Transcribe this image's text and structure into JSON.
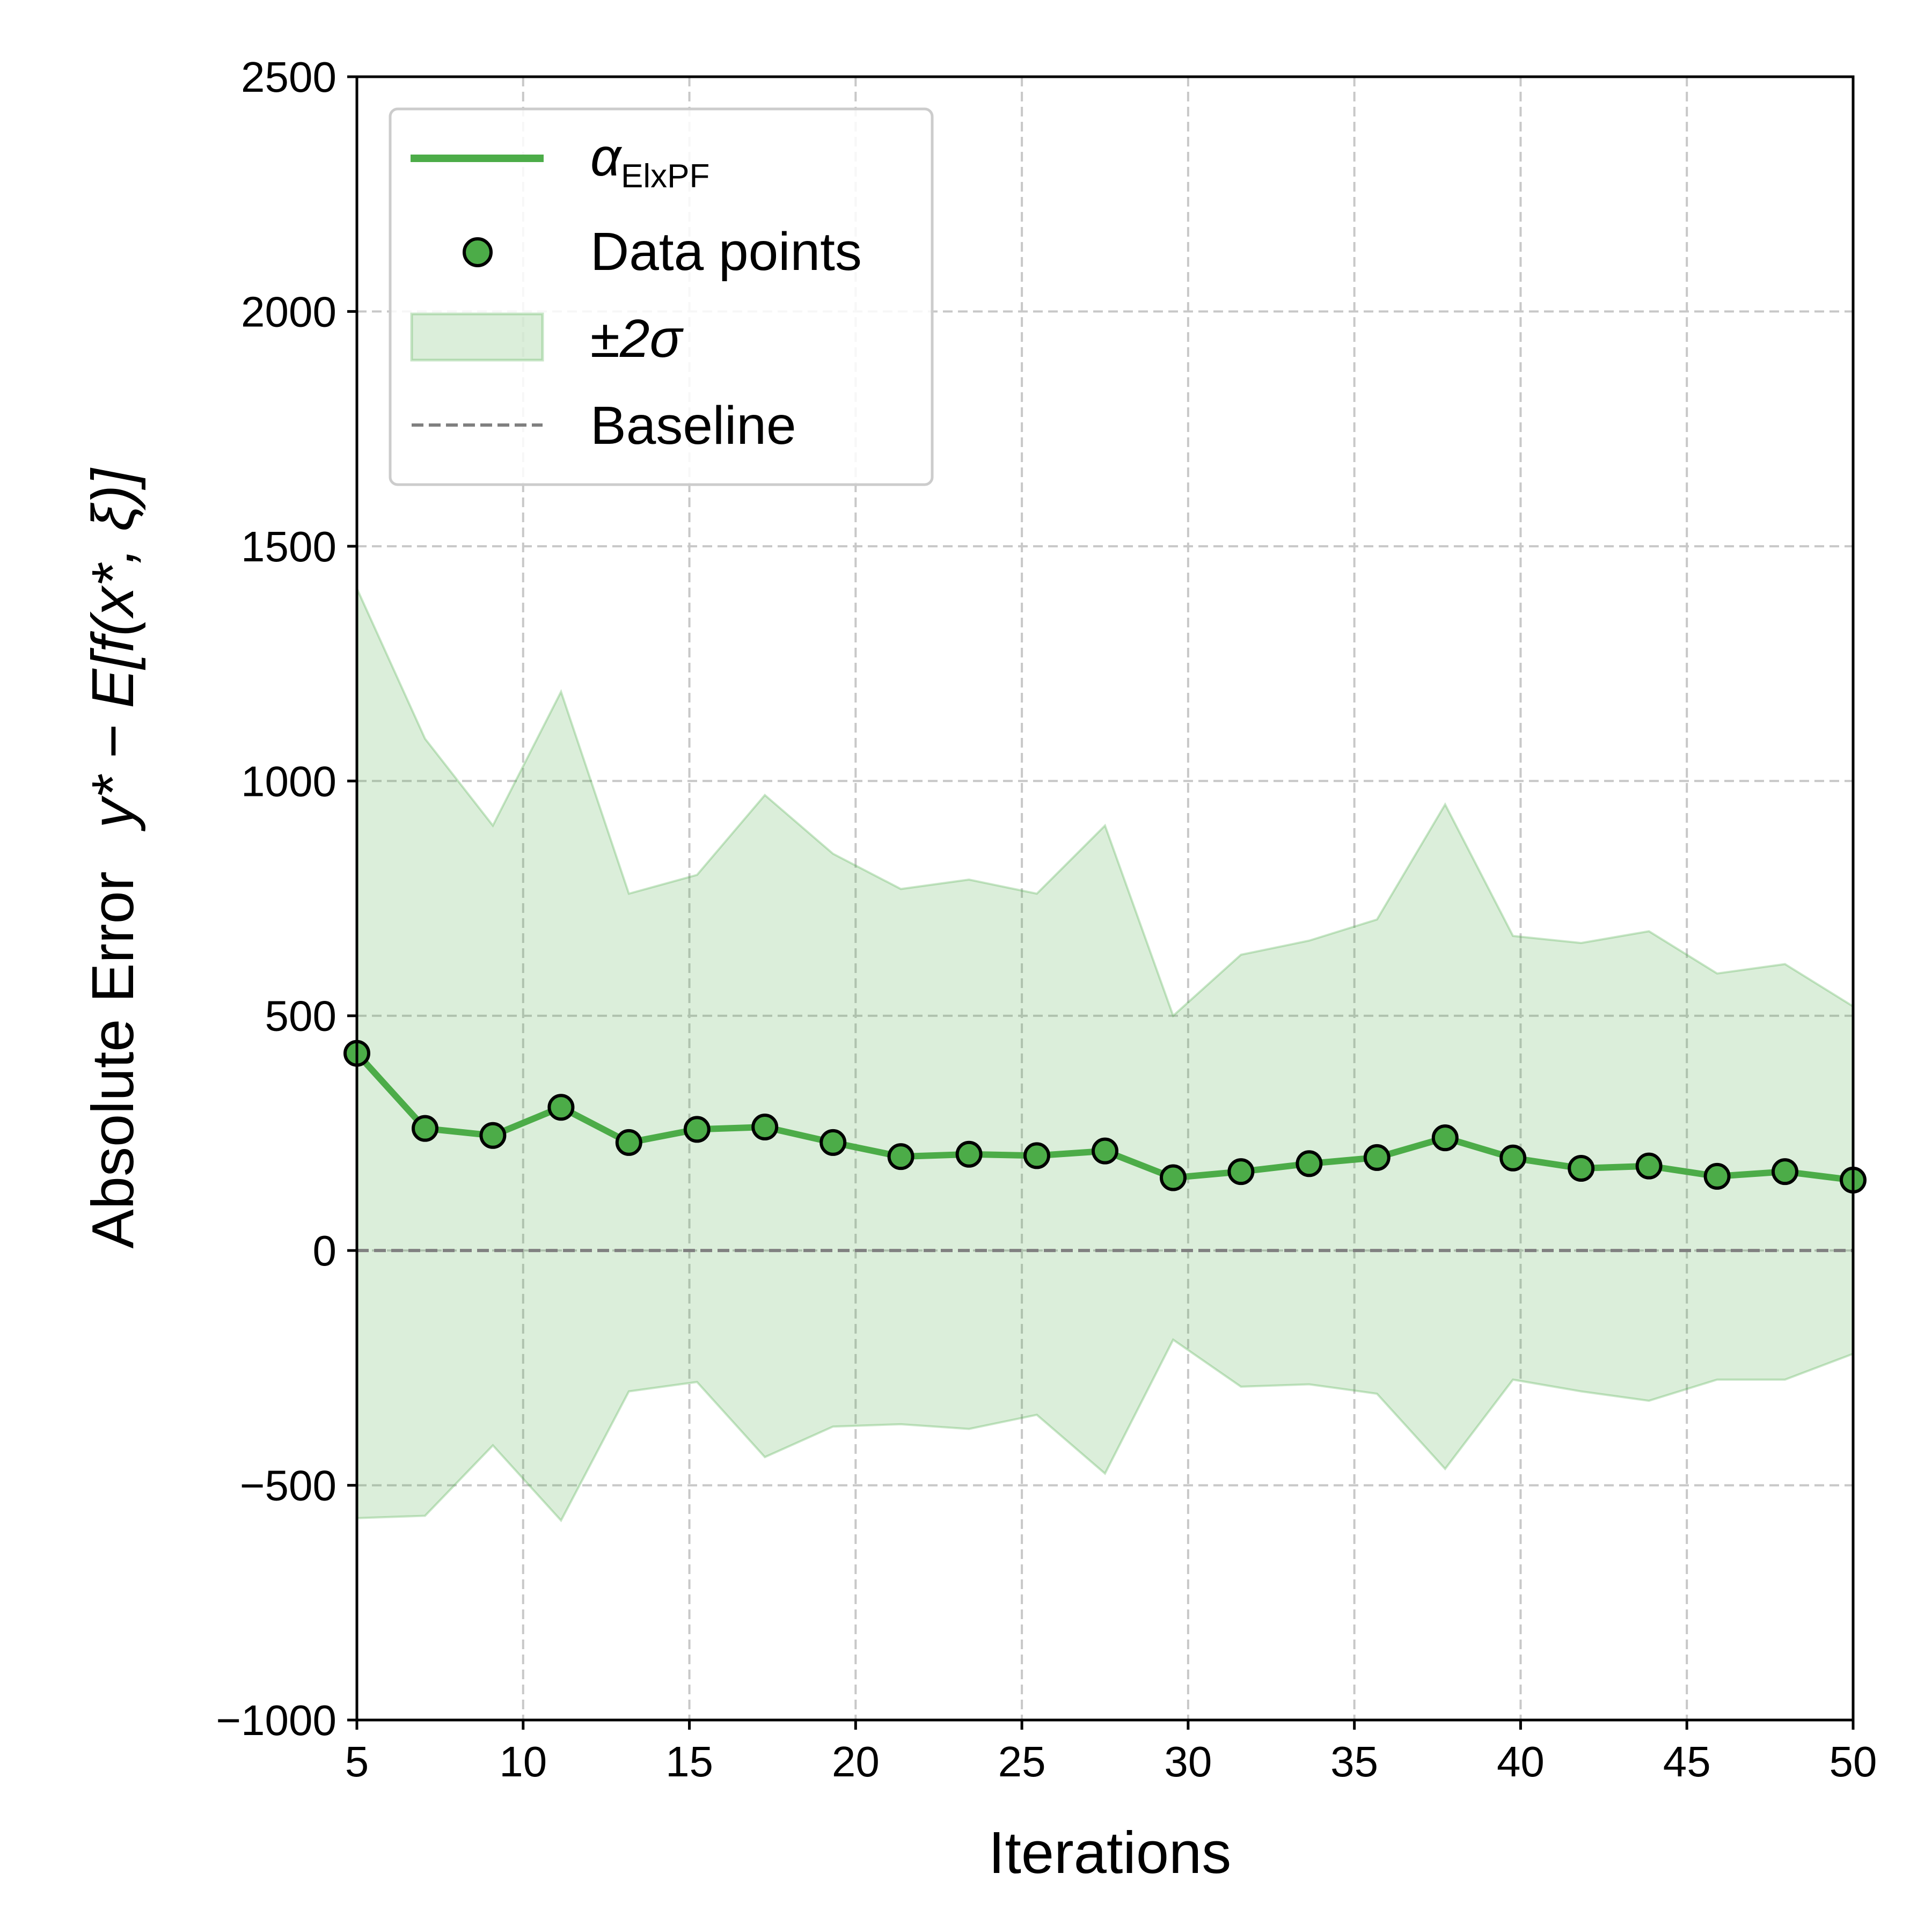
{
  "colors": {
    "line": "#4cac48",
    "band": "#4cac48",
    "marker_edge": "#000000",
    "baseline": "#808080",
    "grid": "#c8c8c8",
    "legend_border": "#cccccc"
  },
  "chart_data": {
    "type": "line",
    "xlabel": "Iterations",
    "ylabel": {
      "part1": "Absolute Error",
      "part2": "y* − E[f(x*, ξ)]"
    },
    "xlim": [
      5,
      50
    ],
    "ylim": [
      -1000,
      2500
    ],
    "xticks": [
      5,
      10,
      15,
      20,
      25,
      30,
      35,
      40,
      45,
      50
    ],
    "yticks": [
      -1000,
      -500,
      0,
      500,
      1000,
      1500,
      2000,
      2500
    ],
    "ytick_labels": [
      "−1000",
      "−500",
      "0",
      "500",
      "1000",
      "1500",
      "2000",
      "2500"
    ],
    "grid": true,
    "legend_position": "upper-left",
    "legend": [
      {
        "label": "α",
        "sub": "ElxPF",
        "kind": "line"
      },
      {
        "label": "Data points",
        "kind": "marker"
      },
      {
        "label": "±2σ",
        "kind": "band"
      },
      {
        "label": "Baseline",
        "kind": "dashed"
      }
    ],
    "x": [
      5,
      7.05,
      9.09,
      11.14,
      13.18,
      15.23,
      17.27,
      19.32,
      21.36,
      23.41,
      25.45,
      27.5,
      29.55,
      31.59,
      33.64,
      35.68,
      37.73,
      39.77,
      41.82,
      43.86,
      45.91,
      47.95,
      50
    ],
    "mean": [
      420,
      260,
      245,
      305,
      230,
      258,
      263,
      230,
      200,
      205,
      202,
      212,
      155,
      168,
      185,
      198,
      240,
      197,
      175,
      180,
      158,
      168,
      150
    ],
    "upper": [
      1410,
      1090,
      905,
      1190,
      760,
      800,
      970,
      845,
      770,
      790,
      760,
      905,
      500,
      630,
      660,
      705,
      950,
      670,
      655,
      680,
      590,
      610,
      520
    ],
    "lower": [
      -570,
      -565,
      -415,
      -575,
      -300,
      -280,
      -440,
      -375,
      -370,
      -380,
      -350,
      -475,
      -190,
      -290,
      -285,
      -305,
      -465,
      -275,
      -300,
      -320,
      -275,
      -275,
      -220
    ],
    "baseline": 0
  }
}
